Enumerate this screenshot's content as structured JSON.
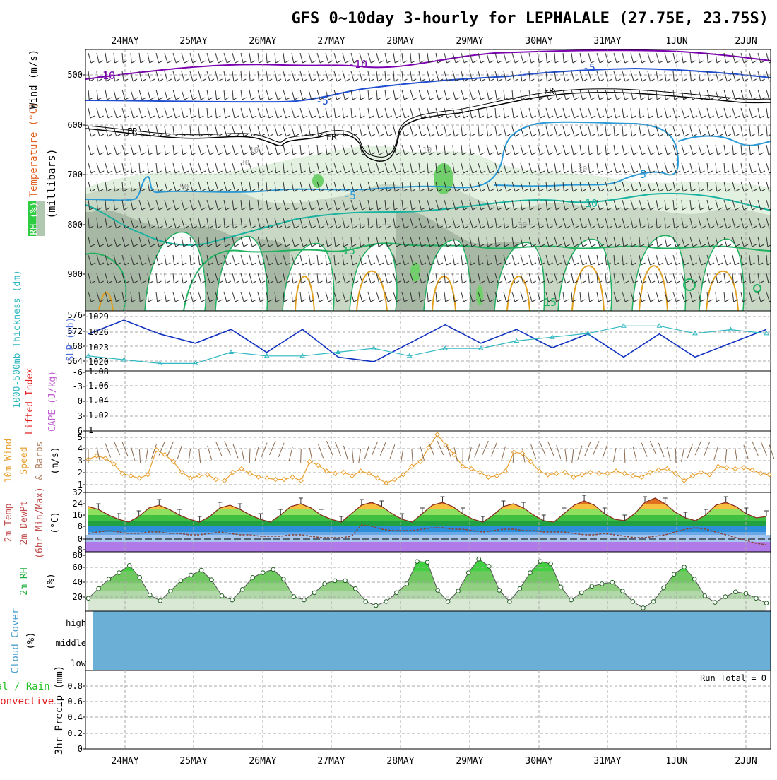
{
  "title": "GFS 0~10day 3-hourly for LEPHALALE (27.75E, 23.75S)",
  "dates": [
    "24MAY",
    "25MAY",
    "26MAY",
    "27MAY",
    "28MAY",
    "29MAY",
    "30MAY",
    "31MAY",
    "1JUN",
    "2JUN"
  ],
  "colors": {
    "rh_green": "#2ecc40",
    "wind_temp_purple": "#7b00b0",
    "temp_blue": "#1f4fd0",
    "temp_lightblue": "#2a9ad8",
    "temp_teal": "#17b3a0",
    "temp_green": "#20b060",
    "temp_orange": "#e0a020",
    "slp_blue": "#1030c0",
    "thickness_cyan": "#30b8c0",
    "li_red": "#e02020",
    "wind10_orange": "#e8a030",
    "cloud_blue": "#6baed6",
    "precip_green": "#00b000"
  },
  "panels": {
    "upper_air": {
      "ylabel_wind": "Wind (m/s)",
      "ylabel_temp": "Temperature (°C)",
      "ylabel_rh": "RH (%)",
      "ylabel_mb": "(millibars)",
      "y_ticks": [
        "500",
        "600",
        "700",
        "800",
        "900"
      ],
      "temp_labels": [
        "-10",
        "-10",
        "-5",
        "-5",
        "FR",
        "FR",
        "FR",
        "-5",
        "5",
        "10",
        "15",
        "15",
        "5",
        "10"
      ],
      "rh_labels": [
        "10",
        "10",
        "30",
        "30",
        "50",
        "30"
      ]
    },
    "slp": {
      "ylabel_thick": "1000-500mb Thickness (dm)",
      "ylabel_slp": "SLP (mb)",
      "left_ticks": [
        "576",
        "572",
        "568",
        "564"
      ],
      "right_ticks": [
        "1029",
        "1026",
        "1023",
        "1020"
      ]
    },
    "cape": {
      "ylabel_li": "Lifted Index",
      "ylabel_cape": "CAPE (J/kg)",
      "left_ticks": [
        "-6",
        "-3",
        "0",
        "3",
        "6"
      ],
      "right_ticks": [
        "1.08",
        "1.06",
        "1.04",
        "1.02",
        "1"
      ]
    },
    "wind10": {
      "ylabel1": "10m Wind",
      "ylabel2": "Speed",
      "ylabel3": "& Barbs",
      "ylabel4": "(m/s)",
      "ticks": [
        "5",
        "4",
        "3",
        "2",
        "1"
      ]
    },
    "temp2m": {
      "ylabel1": "2m Temp",
      "ylabel2": "2m DewPt",
      "ylabel3": "(6hr Min/Max)",
      "ylabel4": "(°C)",
      "ticks": [
        "32",
        "24",
        "16",
        "8",
        "0",
        "-8"
      ]
    },
    "rh2m": {
      "ylabel1": "2m RH",
      "ylabel2": "(%)",
      "ticks": [
        "80",
        "60",
        "40",
        "20"
      ]
    },
    "cloud": {
      "ylabel1": "Cloud Cover",
      "ylabel2": "(%)",
      "levels": [
        "high",
        "middle",
        "low"
      ]
    },
    "precip": {
      "ylabel1": "Total / Rain",
      "ylabel2": "Convective",
      "ylabel3": "3hr Precip (mm)",
      "ticks": [
        "0.8",
        "0.6",
        "0.4",
        "0.2",
        "0"
      ],
      "run_total": "Run Total = 0"
    }
  },
  "chart_data": [
    {
      "type": "line",
      "panel": "slp",
      "x": [
        "24MAY",
        "24MAY",
        "25MAY",
        "25MAY",
        "26MAY",
        "26MAY",
        "27MAY",
        "27MAY",
        "28MAY",
        "28MAY",
        "29MAY",
        "29MAY",
        "30MAY",
        "30MAY",
        "31MAY",
        "31MAY",
        "1JUN",
        "1JUN",
        "2JUN",
        "2JUN"
      ],
      "series": [
        {
          "name": "SLP (mb)",
          "values": [
            1026,
            1029,
            1026,
            1024,
            1027,
            1022,
            1027,
            1021,
            1020,
            1024,
            1028,
            1024,
            1027,
            1023,
            1026,
            1021,
            1026,
            1021,
            1024,
            1027
          ]
        },
        {
          "name": "1000-500mb Thickness (dm)",
          "values": [
            566,
            565,
            564,
            564,
            567,
            566,
            566,
            567,
            568,
            566,
            568,
            568,
            570,
            571,
            572,
            574,
            574,
            572,
            573,
            572
          ]
        }
      ],
      "ylim_slp": [
        1018,
        1031
      ],
      "ylim_thick": [
        562,
        578
      ]
    },
    {
      "type": "line",
      "panel": "cape",
      "series": [
        {
          "name": "Lifted Index",
          "values": [
            0
          ]
        }
      ],
      "ylim": [
        6,
        -6
      ],
      "ylim_cape": [
        1,
        1.08
      ]
    },
    {
      "type": "line",
      "panel": "wind10",
      "series": [
        {
          "name": "10m Wind Speed (m/s)",
          "values": [
            2.8,
            3.1,
            2.9,
            2.4,
            1.6,
            1.4,
            1.2,
            1.5,
            3.6,
            3.2,
            2.6,
            1.7,
            1.2,
            1.4,
            1.5,
            1.1,
            1.0,
            1.7,
            2.0,
            1.6,
            1.3,
            1.2,
            1.1,
            1.1,
            1.3,
            1.0,
            2.6,
            2.3,
            1.8,
            1.6,
            1.7,
            1.4,
            1.8,
            1.6,
            1.2,
            0.8,
            1.1,
            1.5,
            2.2,
            2.6,
            3.8,
            4.9,
            4.0,
            3.2,
            2.2,
            2.0,
            1.7,
            1.3,
            1.4,
            1.8,
            3.4,
            3.3,
            2.6,
            1.8,
            1.5,
            1.6,
            1.7,
            1.3,
            1.5,
            1.7,
            1.6,
            1.6,
            1.8,
            1.6,
            1.4,
            1.3,
            1.7,
            1.9,
            2.0,
            1.6,
            1.0,
            1.4,
            1.7,
            1.5,
            2.2,
            2.1,
            2.0,
            2.1,
            1.9,
            1.6,
            1.5
          ]
        }
      ],
      "ylim": [
        0,
        5.2
      ]
    },
    {
      "type": "area",
      "panel": "temp2m",
      "series": [
        {
          "name": "2m Temp",
          "values": [
            22,
            20,
            16,
            13,
            11,
            15,
            21,
            23,
            20,
            16,
            13,
            11,
            15,
            21,
            23,
            20,
            16,
            13,
            11,
            16,
            22,
            24,
            21,
            16,
            13,
            11,
            17,
            23,
            25,
            22,
            17,
            13,
            11,
            17,
            23,
            25,
            22,
            17,
            13,
            11,
            16,
            22,
            24,
            21,
            16,
            12,
            11,
            17,
            23,
            26,
            23,
            17,
            13,
            12,
            17,
            25,
            28,
            24,
            18,
            14,
            12,
            16,
            23,
            25,
            22,
            17,
            14,
            15
          ]
        },
        {
          "name": "2m DewPt",
          "values": [
            3,
            4,
            5,
            4,
            3,
            3,
            4,
            4,
            3,
            3,
            2,
            2,
            3,
            4,
            3,
            2,
            2,
            1,
            1,
            1,
            2,
            2,
            1,
            0,
            0,
            0,
            1,
            9,
            8,
            6,
            5,
            5,
            5,
            6,
            7,
            7,
            6,
            6,
            5,
            4,
            5,
            6,
            6,
            5,
            5,
            4,
            4,
            4,
            3,
            2,
            2,
            3,
            2,
            1,
            0,
            0,
            1,
            2,
            4,
            6,
            7,
            6,
            4,
            2,
            0,
            -2,
            -4,
            -5
          ]
        }
      ],
      "ylim": [
        -10,
        32
      ]
    },
    {
      "type": "area",
      "panel": "rh2m",
      "series": [
        {
          "name": "2m RH (%)",
          "values": [
            26,
            38,
            50,
            58,
            67,
            52,
            30,
            23,
            35,
            48,
            55,
            61,
            49,
            29,
            24,
            37,
            52,
            58,
            62,
            50,
            28,
            24,
            33,
            44,
            48,
            48,
            38,
            22,
            17,
            22,
            33,
            44,
            72,
            71,
            36,
            22,
            35,
            58,
            75,
            66,
            36,
            22,
            38,
            58,
            72,
            69,
            40,
            24,
            33,
            41,
            44,
            46,
            35,
            22,
            14,
            22,
            39,
            56,
            65,
            50,
            29,
            21,
            28,
            34,
            32,
            26,
            20
          ]
        }
      ],
      "ylim": [
        10,
        84
      ]
    },
    {
      "type": "bar",
      "panel": "precip",
      "series": [
        {
          "name": "3hr Precip (mm)",
          "values": [
            0
          ]
        }
      ],
      "ylim": [
        0,
        1
      ]
    }
  ]
}
